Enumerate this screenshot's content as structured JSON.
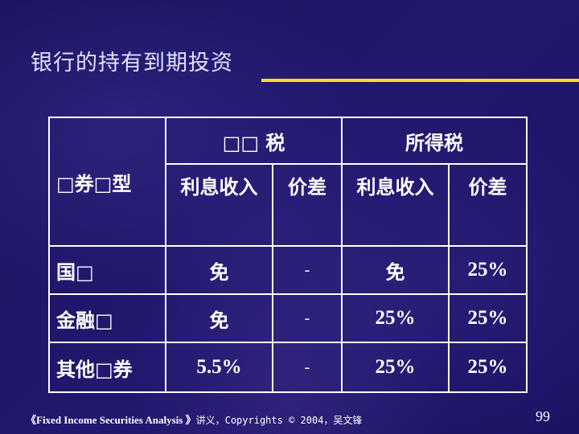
{
  "title": "银行的持有到期投资",
  "accent_color": "#f2e21a",
  "table": {
    "corner": "□券□型",
    "groups": [
      "□□ 税",
      "所得税"
    ],
    "subheaders": [
      "利息收入",
      "价差",
      "利息收入",
      "价差"
    ],
    "rows": [
      {
        "label": "国□",
        "cells": [
          "免",
          "-",
          "免",
          "25%"
        ]
      },
      {
        "label": "金融□",
        "cells": [
          "免",
          "-",
          "25%",
          "25%"
        ]
      },
      {
        "label": "其他□券",
        "cells": [
          "5.5%",
          "-",
          "25%",
          "25%"
        ]
      }
    ]
  },
  "footer": {
    "book": "《Fixed Income Securities Analysis 》",
    "rest": "讲义，Copyrights © 2004，吴文锋"
  },
  "page_number": "99"
}
